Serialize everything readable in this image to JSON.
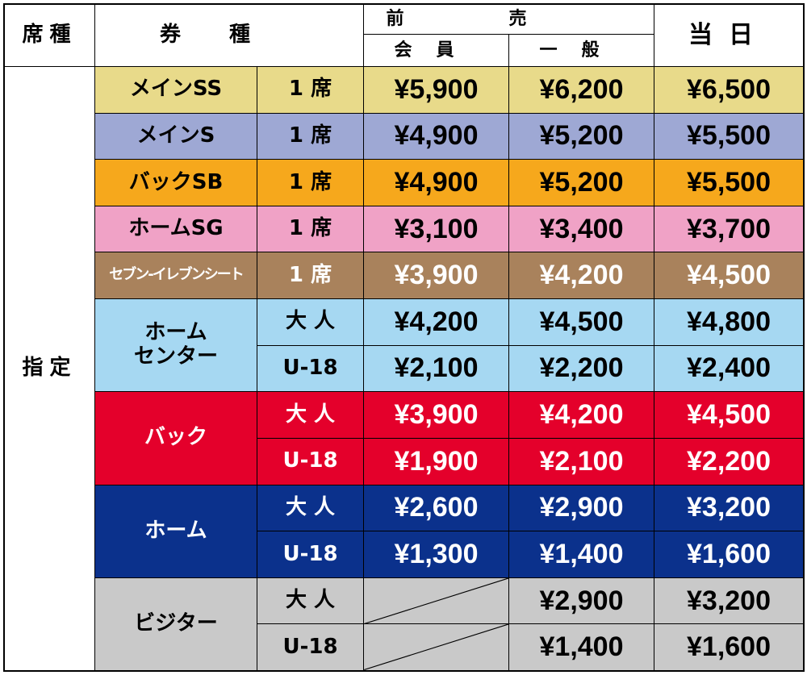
{
  "header": {
    "seat_class": "席種",
    "ticket_type": "券種",
    "advance": "前売",
    "member": "会員",
    "general": "一般",
    "same_day": "当日"
  },
  "section": "指定",
  "groups": [
    {
      "name": "メインSS",
      "color": "#e8da8a",
      "text_color": "#000",
      "rows": [
        [
          "1 席",
          "¥5,900",
          "¥6,200",
          "¥6,500"
        ]
      ]
    },
    {
      "name": "メインS",
      "color": "#9ea8d4",
      "text_color": "#000",
      "rows": [
        [
          "1 席",
          "¥4,900",
          "¥5,200",
          "¥5,500"
        ]
      ]
    },
    {
      "name": "バックSB",
      "color": "#f6a81c",
      "text_color": "#000",
      "rows": [
        [
          "1 席",
          "¥4,900",
          "¥5,200",
          "¥5,500"
        ]
      ]
    },
    {
      "name": "ホームSG",
      "color": "#f0a2c6",
      "text_color": "#000",
      "rows": [
        [
          "1 席",
          "¥3,100",
          "¥3,400",
          "¥3,700"
        ]
      ]
    },
    {
      "name": "セブン-イレブンシート",
      "color": "#a9825c",
      "text_color": "#fff",
      "rows": [
        [
          "1 席",
          "¥3,900",
          "¥4,200",
          "¥4,500"
        ]
      ]
    },
    {
      "name": [
        "ホーム",
        "センター"
      ],
      "color": "#a6d8f2",
      "text_color": "#000",
      "rows": [
        [
          "大 人",
          "¥4,200",
          "¥4,500",
          "¥4,800"
        ],
        [
          "U-18",
          "¥2,100",
          "¥2,200",
          "¥2,400"
        ]
      ]
    },
    {
      "name": "バック",
      "color": "#e4002b",
      "text_color": "#fff",
      "rows": [
        [
          "大 人",
          "¥3,900",
          "¥4,200",
          "¥4,500"
        ],
        [
          "U-18",
          "¥1,900",
          "¥2,100",
          "¥2,200"
        ]
      ]
    },
    {
      "name": "ホーム",
      "color": "#0b318c",
      "text_color": "#fff",
      "rows": [
        [
          "大 人",
          "¥2,600",
          "¥2,900",
          "¥3,200"
        ],
        [
          "U-18",
          "¥1,300",
          "¥1,400",
          "¥1,600"
        ]
      ]
    },
    {
      "name": "ビジター",
      "color": "#c9c9c9",
      "text_color": "#000",
      "rows": [
        [
          "大 人",
          null,
          "¥2,900",
          "¥3,200"
        ],
        [
          "U-18",
          null,
          "¥1,400",
          "¥1,600"
        ]
      ]
    }
  ]
}
